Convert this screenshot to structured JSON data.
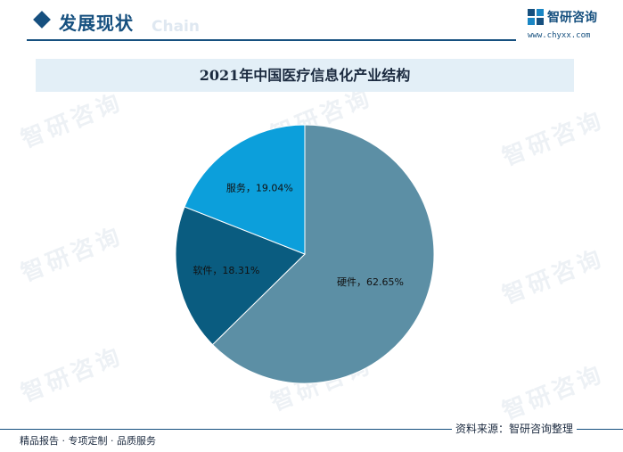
{
  "header": {
    "section_title": "发展现状",
    "ghost_text": "Chain",
    "logo_name": "智研咨询",
    "logo_url": "www.chyxx.com"
  },
  "watermark_text": "智研咨询",
  "chart_data": {
    "type": "pie",
    "title": "2021年中国医疗信息化产业结构",
    "start_angle_deg": 90,
    "direction": "clockwise",
    "slices": [
      {
        "name": "硬件",
        "value": 62.65,
        "label": "硬件，62.65%",
        "color": "#5c8fa5"
      },
      {
        "name": "软件",
        "value": 18.31,
        "label": "软件，18.31%",
        "color": "#0a5c80"
      },
      {
        "name": "服务",
        "value": 19.04,
        "label": "服务，19.04%",
        "color": "#0c9fdb"
      }
    ]
  },
  "footer": {
    "left": "精品报告 · 专项定制 · 品质服务",
    "source": "资料来源：智研咨询整理"
  }
}
